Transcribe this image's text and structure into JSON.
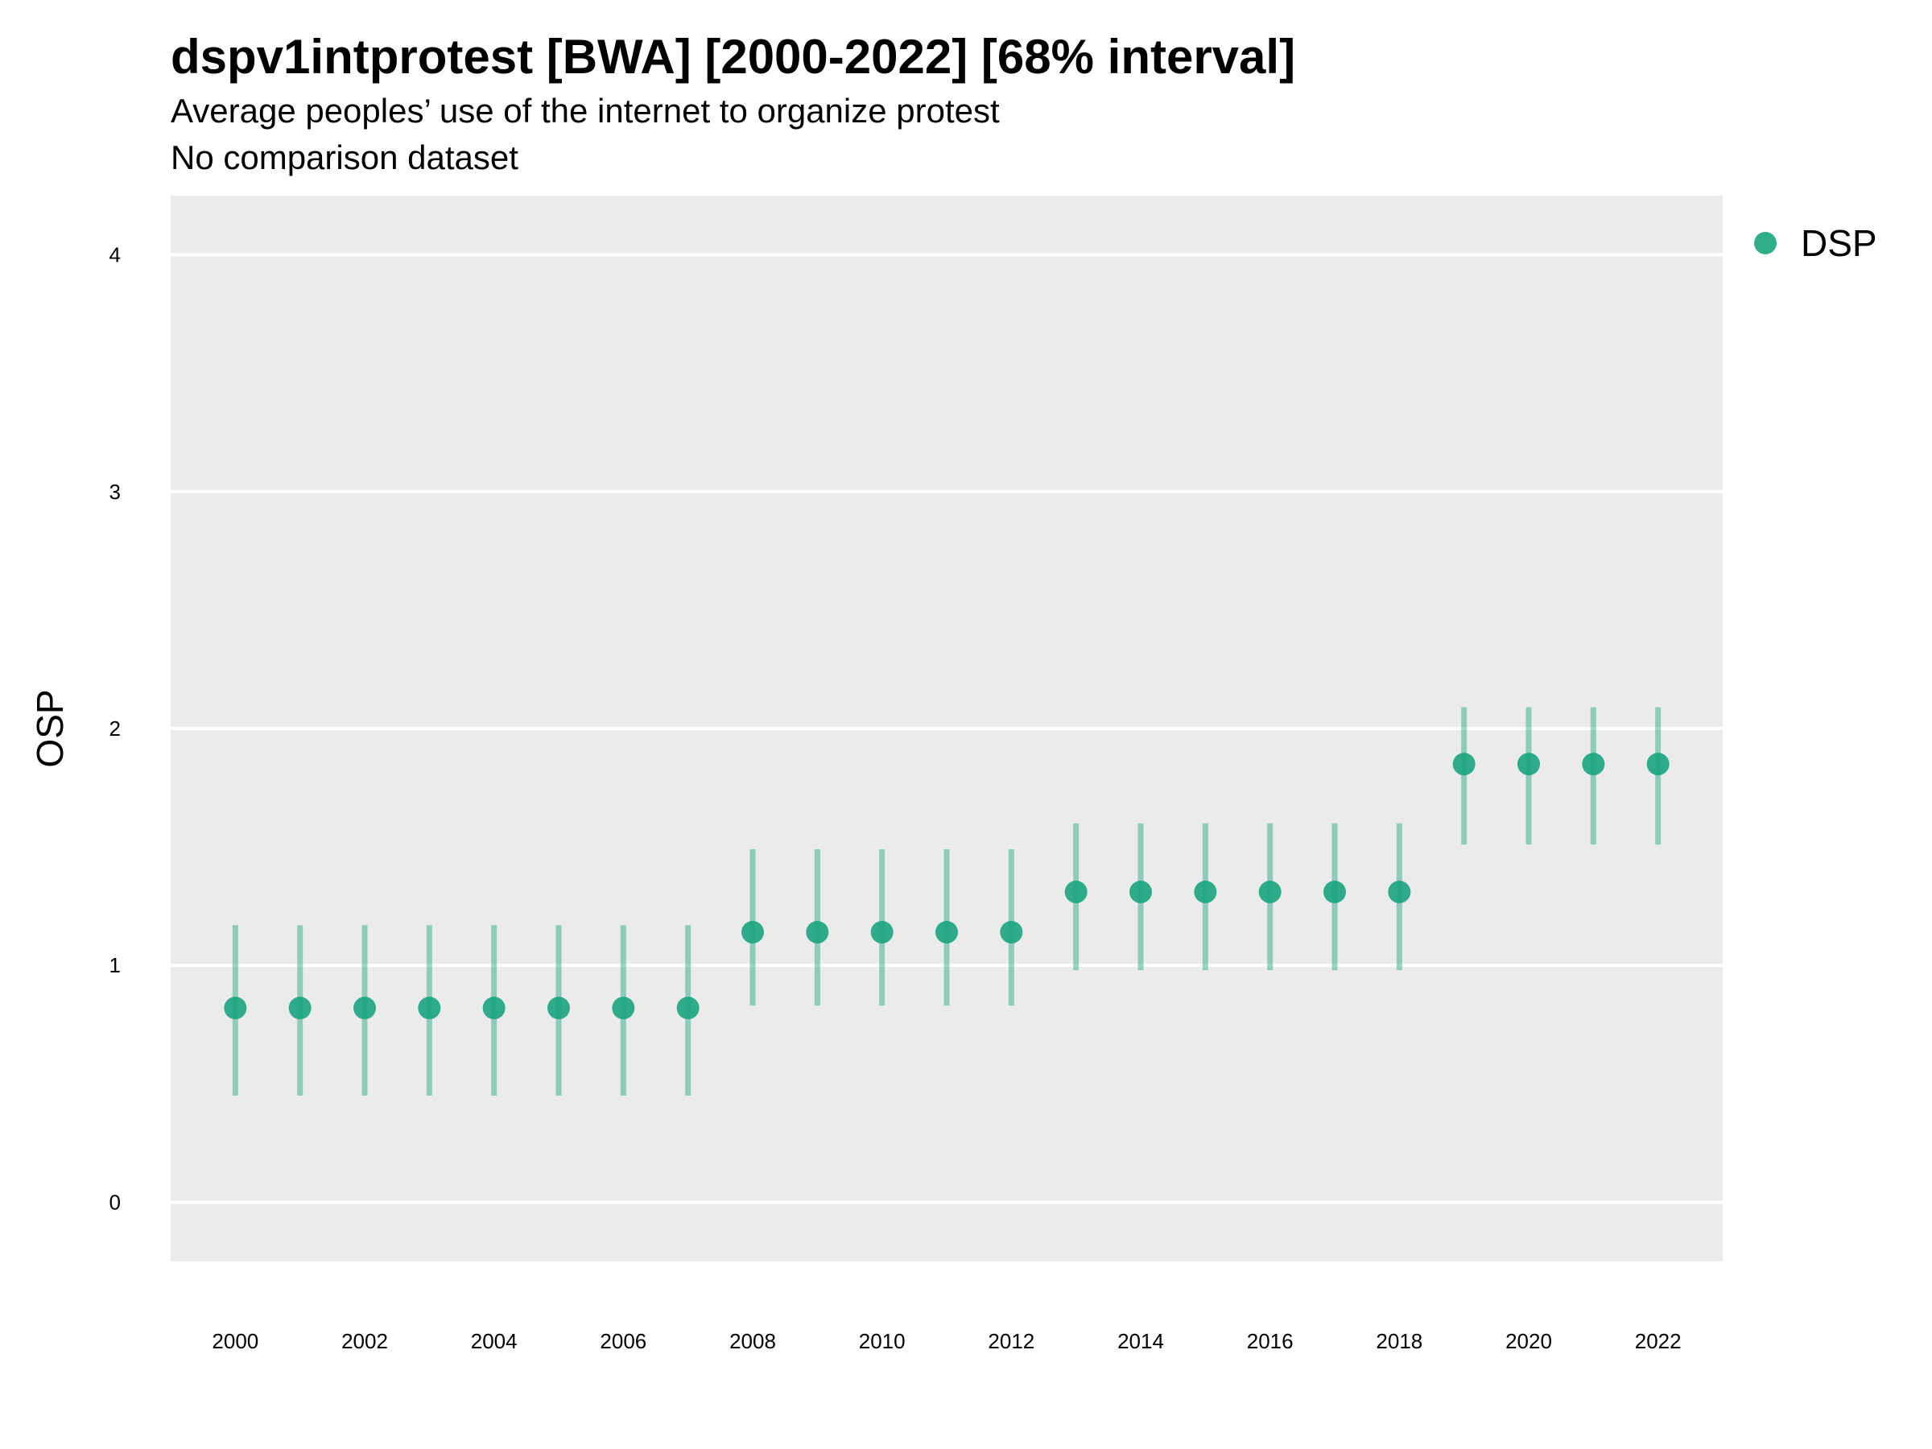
{
  "chart_data": {
    "type": "scatter",
    "title": "dspv1intprotest [BWA] [2000-2022] [68% interval]",
    "subtitle": "Average peoples’ use of the internet to organize protest",
    "caption": "No comparison dataset",
    "xlabel": "",
    "ylabel": "OSP",
    "xlim": [
      1999,
      2023
    ],
    "ylim": [
      -0.25,
      4.25
    ],
    "x_ticks": [
      2000,
      2002,
      2004,
      2006,
      2008,
      2010,
      2012,
      2014,
      2016,
      2018,
      2020,
      2022
    ],
    "y_ticks": [
      0,
      1,
      2,
      3,
      4
    ],
    "grid": true,
    "legend_position": "top-right",
    "series": [
      {
        "name": "DSP",
        "color": "#1aa57e",
        "x": [
          2000,
          2001,
          2002,
          2003,
          2004,
          2005,
          2006,
          2007,
          2008,
          2009,
          2010,
          2011,
          2012,
          2013,
          2014,
          2015,
          2016,
          2017,
          2018,
          2019,
          2020,
          2021,
          2022
        ],
        "y": [
          0.82,
          0.82,
          0.82,
          0.82,
          0.82,
          0.82,
          0.82,
          0.82,
          1.14,
          1.14,
          1.14,
          1.14,
          1.14,
          1.31,
          1.31,
          1.31,
          1.31,
          1.31,
          1.31,
          1.85,
          1.85,
          1.85,
          1.85
        ],
        "lower": [
          0.45,
          0.45,
          0.45,
          0.45,
          0.45,
          0.45,
          0.45,
          0.45,
          0.83,
          0.83,
          0.83,
          0.83,
          0.83,
          0.98,
          0.98,
          0.98,
          0.98,
          0.98,
          0.98,
          1.51,
          1.51,
          1.51,
          1.51
        ],
        "upper": [
          1.17,
          1.17,
          1.17,
          1.17,
          1.17,
          1.17,
          1.17,
          1.17,
          1.49,
          1.49,
          1.49,
          1.49,
          1.49,
          1.6,
          1.6,
          1.6,
          1.6,
          1.6,
          1.6,
          2.09,
          2.09,
          2.09,
          2.09
        ]
      }
    ]
  }
}
